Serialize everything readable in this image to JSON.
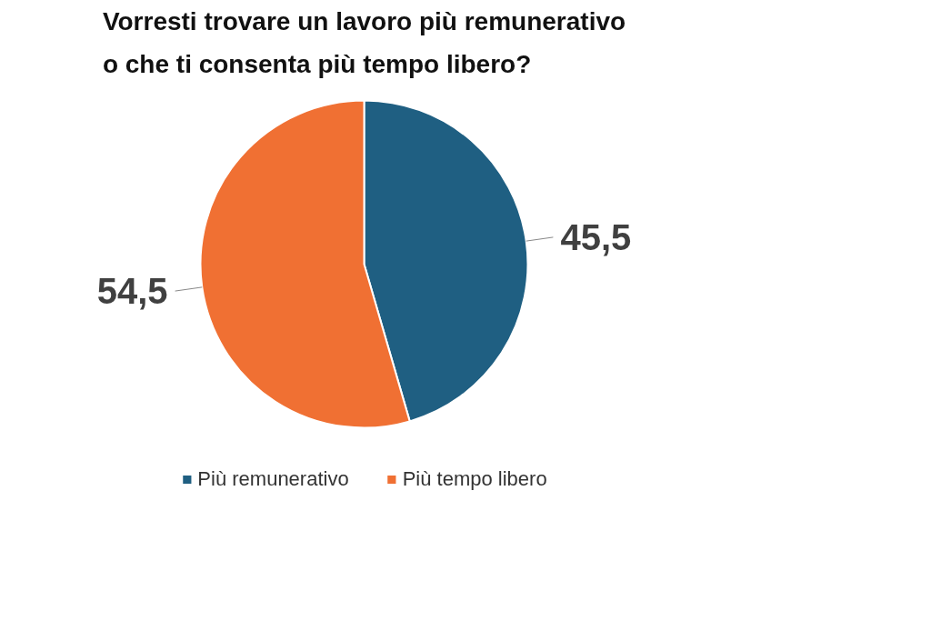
{
  "chart_data": {
    "type": "pie",
    "title": "Vorresti trovare un lavoro più remunerativo\no che ti consenta più tempo libero?",
    "categories": [
      "Più remunerativo",
      "Più tempo libero"
    ],
    "values": [
      45.5,
      54.5
    ],
    "value_labels": [
      "45,5",
      "54,5"
    ],
    "colors": [
      "#1f5f82",
      "#f07033"
    ],
    "legend": "bottom"
  }
}
